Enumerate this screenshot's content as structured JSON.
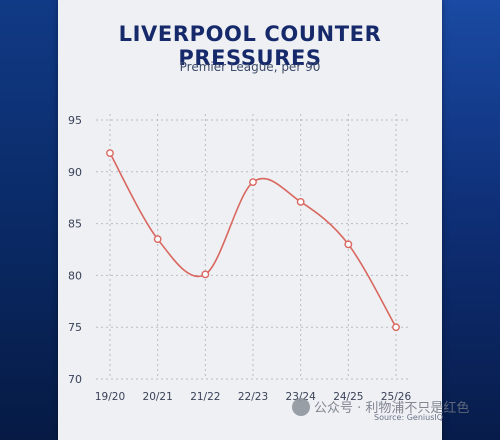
{
  "title": "LIVERPOOL COUNTER PRESSURES",
  "subtitle": "Premier League, per 90",
  "source": "Source: GeniusIQ",
  "watermark": "公众号 · 利物浦不只是红色",
  "chart_data": {
    "type": "line",
    "title": "LIVERPOOL COUNTER PRESSURES",
    "subtitle": "Premier League, per 90",
    "categories": [
      "19/20",
      "20/21",
      "21/22",
      "22/23",
      "23/24",
      "24/25",
      "25/26"
    ],
    "series": [
      {
        "values": [
          91.8,
          83.5,
          80.1,
          89.0,
          87.1,
          83.0,
          75.0
        ]
      }
    ],
    "ylim": [
      70,
      95
    ],
    "yticks": [
      70,
      75,
      80,
      85,
      90,
      95
    ],
    "grid": true,
    "colors": {
      "line": "#d9675f",
      "marker_fill": "#ffffff",
      "grid": "#b9bcc4",
      "title": "#16296a"
    }
  }
}
